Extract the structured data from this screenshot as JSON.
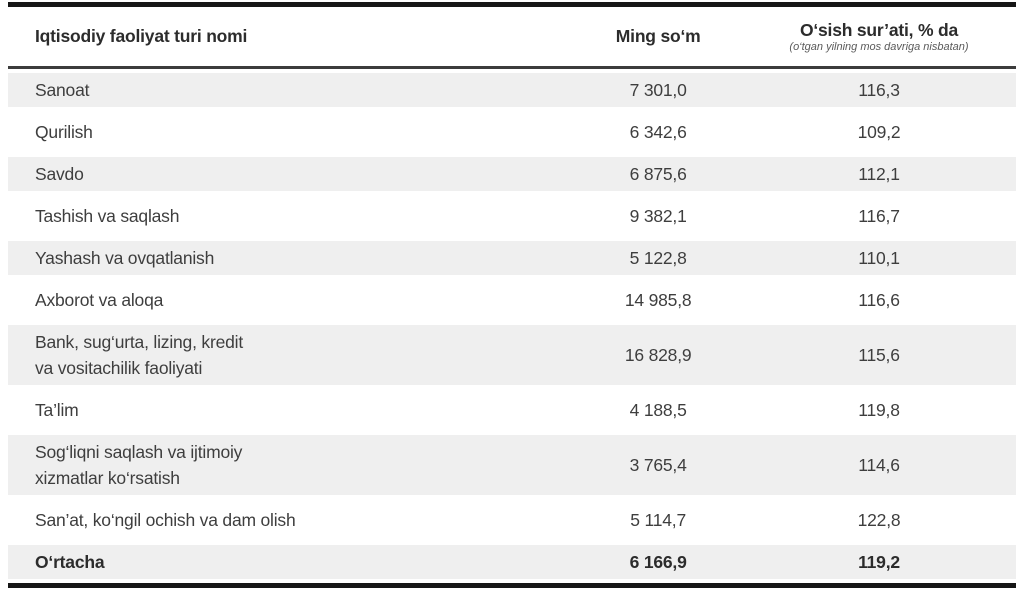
{
  "colors": {
    "row_shade": "#efefef",
    "text": "#3e3e3e",
    "strong_text": "#2c2c2c",
    "border_black": "#161616",
    "header_rule": "#3c3c3c",
    "subtitle": "#5a5a5a"
  },
  "table": {
    "columns": {
      "activity": "Iqtisodiy faoliyat turi nomi",
      "amount": "Ming so‘m",
      "growth": "O‘sish sur’ati, % da",
      "growth_note": "(o‘tgan yilning mos davriga nisbatan)"
    },
    "rows": [
      {
        "name": "Sanoat",
        "amount": "7 301,0",
        "growth": "116,3"
      },
      {
        "name": "Qurilish",
        "amount": "6 342,6",
        "growth": "109,2"
      },
      {
        "name": "Savdo",
        "amount": "6 875,6",
        "growth": "112,1"
      },
      {
        "name": "Tashish va saqlash",
        "amount": "9 382,1",
        "growth": "116,7"
      },
      {
        "name": "Yashash va ovqatlanish",
        "amount": "5 122,8",
        "growth": "110,1"
      },
      {
        "name": "Axborot va aloqa",
        "amount": "14 985,8",
        "growth": "116,6"
      },
      {
        "name": "Bank, sug‘urta, lizing, kredit\nva vositachilik faoliyati",
        "amount": "16 828,9",
        "growth": "115,6"
      },
      {
        "name": "Ta’lim",
        "amount": "4 188,5",
        "growth": "119,8"
      },
      {
        "name": "Sog‘liqni saqlash va ijtimoiy\nxizmatlar ko‘rsatish",
        "amount": "3 765,4",
        "growth": "114,6"
      },
      {
        "name": "San’at, ko‘ngil ochish va dam olish",
        "amount": "5 114,7",
        "growth": "122,8"
      }
    ],
    "footer": {
      "name": "O‘rtacha",
      "amount": "6 166,9",
      "growth": "119,2"
    }
  }
}
